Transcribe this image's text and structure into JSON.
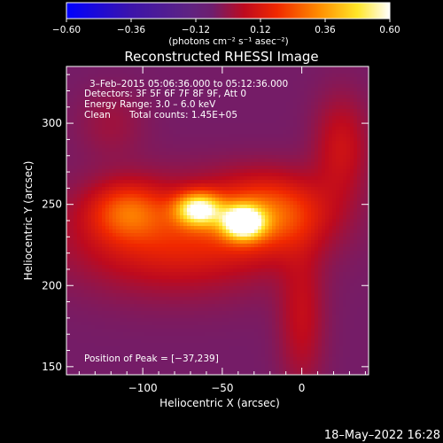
{
  "chart_data": {
    "type": "heatmap",
    "title": "Reconstructed RHESSI Image",
    "xlabel": "Heliocentric X (arcsec)",
    "ylabel": "Heliocentric Y (arcsec)",
    "xlim": [
      -148,
      42
    ],
    "ylim": [
      145,
      335
    ],
    "x_ticks": [
      -100,
      -50,
      0
    ],
    "x_tick_labels": [
      "−100",
      "−50",
      "0"
    ],
    "y_ticks": [
      150,
      200,
      250,
      300
    ],
    "colorbar": {
      "units": "(photons cm⁻² s⁻¹ asec⁻²)",
      "range": [
        -0.6,
        0.6
      ],
      "ticks": [
        -0.6,
        -0.36,
        -0.12,
        0.12,
        0.36,
        0.6
      ],
      "tick_labels": [
        "−0.60",
        "−0.36",
        "−0.12",
        "0.12",
        "0.36",
        "0.60"
      ]
    },
    "annotations": {
      "time_range": "3–Feb–2015 05:06:36.000 to 05:12:36.000",
      "detectors": "Detectors: 3F 5F 6F 7F 8F 9F, Att 0",
      "energy_range": "Energy Range: 3.0 – 6.0 keV",
      "method": "Clean",
      "total_counts": "Total counts: 1.45E+05",
      "peak": "Position of Peak = [−37,239]"
    },
    "peak_position": [
      -37,
      239
    ],
    "sources": [
      {
        "x": -37,
        "y": 239,
        "peak": 0.6,
        "sx": 9,
        "sy": 7
      },
      {
        "x": -65,
        "y": 247,
        "peak": 0.52,
        "sx": 10,
        "sy": 7
      },
      {
        "x": -20,
        "y": 245,
        "peak": 0.28,
        "sx": 25,
        "sy": 16
      },
      {
        "x": -110,
        "y": 246,
        "peak": 0.22,
        "sx": 16,
        "sy": 12
      },
      {
        "x": -80,
        "y": 230,
        "peak": 0.22,
        "sx": 45,
        "sy": 22
      },
      {
        "x": 0,
        "y": 180,
        "peak": 0.12,
        "sx": 10,
        "sy": 30
      },
      {
        "x": 25,
        "y": 285,
        "peak": 0.14,
        "sx": 12,
        "sy": 22
      },
      {
        "x": -120,
        "y": 300,
        "peak": 0.06,
        "sx": 15,
        "sy": 15
      }
    ],
    "background": -0.05,
    "grid": false
  },
  "footer": {
    "date": "18–May–2022 16:28"
  }
}
